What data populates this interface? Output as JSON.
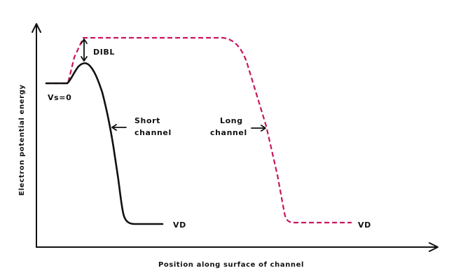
{
  "axes": {
    "y_label": "Electron potential energy",
    "x_label": "Position along surface of channel"
  },
  "labels": {
    "dibl": "DIBL",
    "vs": "Vs=0",
    "short_line1": "Short",
    "short_line2": "channel",
    "long_line1": "Long",
    "long_line2": "channel",
    "vd_short": "VD",
    "vd_long": "VD"
  },
  "colors": {
    "short_channel": "#111111",
    "long_channel": "#c8155f",
    "axes": "#111111"
  },
  "style": {
    "long_channel_line": "dashed",
    "short_channel_line": "solid"
  }
}
